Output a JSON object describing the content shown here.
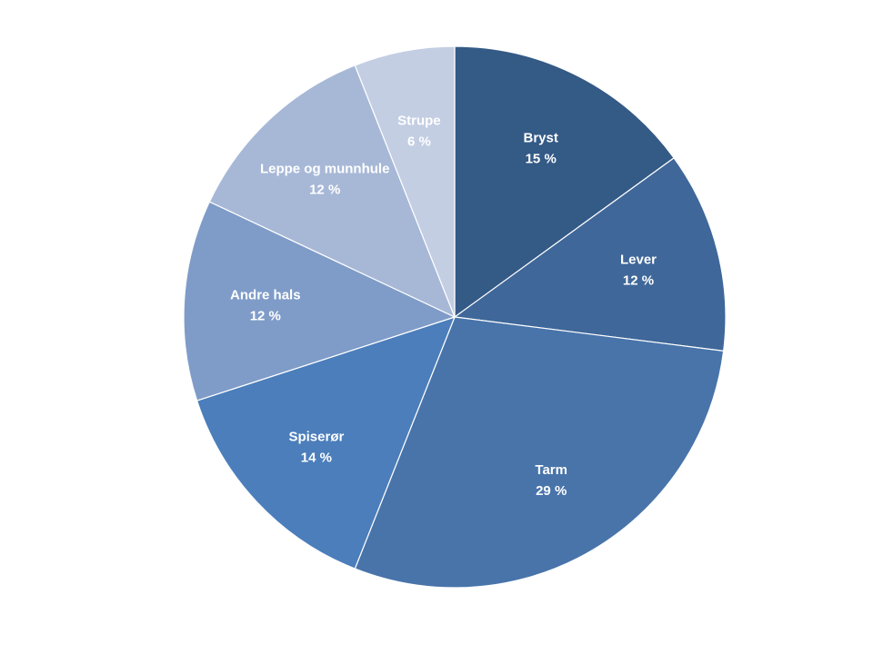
{
  "chart_data": {
    "type": "pie",
    "start_angle_deg": 0,
    "direction": "clockwise",
    "slices": [
      {
        "category": "Bryst",
        "value": 15,
        "value_label": "15 %",
        "color": "#345a86"
      },
      {
        "category": "Lever",
        "value": 12,
        "value_label": "12 %",
        "color": "#3f6799"
      },
      {
        "category": "Tarm",
        "value": 29,
        "value_label": "29 %",
        "color": "#4874aa"
      },
      {
        "category": "Spiserør",
        "value": 14,
        "value_label": "14 %",
        "color": "#4b7ebb"
      },
      {
        "category": "Andre hals",
        "value": 12,
        "value_label": "12 %",
        "color": "#7f9cc8"
      },
      {
        "category": "Leppe og munnhule",
        "value": 12,
        "value_label": "12 %",
        "color": "#a7b8d7"
      },
      {
        "category": "Strupe",
        "value": 6,
        "value_label": "6 %",
        "color": "#c3cee3"
      }
    ],
    "legend": "none",
    "data_labels": "inside"
  }
}
